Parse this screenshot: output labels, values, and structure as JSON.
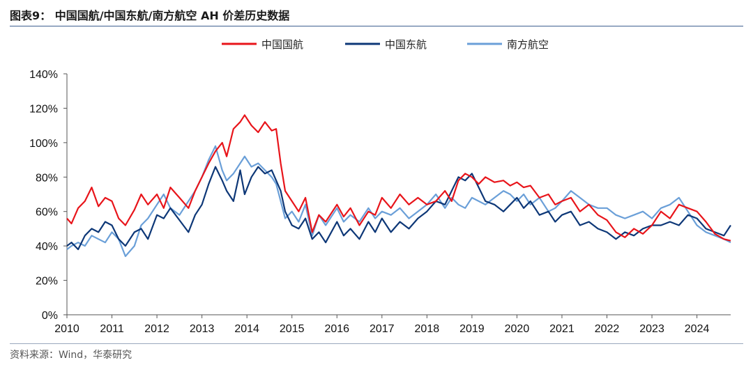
{
  "header": {
    "title": "图表9： 中国国航/中国东航/南方航空 AH 价差历史数据"
  },
  "footer": {
    "source": "资料来源：Wind，华泰研究"
  },
  "chart_data": {
    "type": "line",
    "title": "",
    "xlabel": "",
    "ylabel": "",
    "ylim": [
      0,
      140
    ],
    "xlim": [
      2010.0,
      2024.75
    ],
    "y_unit": "%",
    "yticks": [
      "0%",
      "20%",
      "40%",
      "60%",
      "80%",
      "100%",
      "120%",
      "140%"
    ],
    "yticks_values": [
      0,
      20,
      40,
      60,
      80,
      100,
      120,
      140
    ],
    "xticks": [
      "2010",
      "2011",
      "2012",
      "2013",
      "2014",
      "2015",
      "2016",
      "2017",
      "2018",
      "2019",
      "2020",
      "2021",
      "2022",
      "2023",
      "2024"
    ],
    "grid": false,
    "legend_position": "top",
    "series": [
      {
        "name": "中国国航",
        "color": "#e8141a",
        "x": [
          2010.0,
          2010.1,
          2010.25,
          2010.4,
          2010.55,
          2010.7,
          2010.85,
          2011.0,
          2011.15,
          2011.3,
          2011.5,
          2011.65,
          2011.8,
          2012.0,
          2012.15,
          2012.3,
          2012.5,
          2012.7,
          2012.85,
          2013.0,
          2013.15,
          2013.3,
          2013.45,
          2013.55,
          2013.7,
          2013.85,
          2013.95,
          2014.1,
          2014.25,
          2014.4,
          2014.55,
          2014.65,
          2014.75,
          2014.85,
          2015.0,
          2015.15,
          2015.3,
          2015.45,
          2015.6,
          2015.75,
          2016.0,
          2016.15,
          2016.3,
          2016.5,
          2016.7,
          2016.85,
          2017.0,
          2017.2,
          2017.4,
          2017.6,
          2017.8,
          2018.0,
          2018.2,
          2018.4,
          2018.55,
          2018.7,
          2018.85,
          2019.0,
          2019.15,
          2019.3,
          2019.5,
          2019.7,
          2019.85,
          2020.0,
          2020.15,
          2020.3,
          2020.5,
          2020.7,
          2020.85,
          2021.0,
          2021.2,
          2021.4,
          2021.6,
          2021.8,
          2022.0,
          2022.2,
          2022.4,
          2022.6,
          2022.8,
          2023.0,
          2023.2,
          2023.4,
          2023.6,
          2023.8,
          2024.0,
          2024.2,
          2024.4,
          2024.6,
          2024.75
        ],
        "y": [
          56,
          53,
          62,
          66,
          74,
          63,
          68,
          66,
          56,
          52,
          61,
          70,
          64,
          70,
          62,
          74,
          68,
          62,
          72,
          80,
          88,
          95,
          100,
          92,
          108,
          112,
          116,
          110,
          106,
          112,
          107,
          108,
          88,
          72,
          66,
          60,
          68,
          48,
          58,
          54,
          64,
          57,
          62,
          52,
          60,
          58,
          68,
          62,
          70,
          64,
          68,
          64,
          66,
          72,
          66,
          78,
          82,
          80,
          76,
          80,
          77,
          78,
          75,
          77,
          74,
          75,
          68,
          70,
          64,
          66,
          68,
          60,
          64,
          58,
          55,
          48,
          45,
          50,
          47,
          52,
          60,
          56,
          64,
          62,
          60,
          54,
          47,
          44,
          43
        ]
      },
      {
        "name": "中国东航",
        "color": "#0d3777",
        "x": [
          2010.0,
          2010.1,
          2010.25,
          2010.4,
          2010.55,
          2010.7,
          2010.85,
          2011.0,
          2011.15,
          2011.3,
          2011.5,
          2011.65,
          2011.8,
          2012.0,
          2012.15,
          2012.3,
          2012.5,
          2012.7,
          2012.85,
          2013.0,
          2013.15,
          2013.3,
          2013.45,
          2013.55,
          2013.7,
          2013.85,
          2013.95,
          2014.1,
          2014.25,
          2014.4,
          2014.55,
          2014.65,
          2014.75,
          2014.85,
          2015.0,
          2015.15,
          2015.3,
          2015.45,
          2015.6,
          2015.75,
          2016.0,
          2016.15,
          2016.3,
          2016.5,
          2016.7,
          2016.85,
          2017.0,
          2017.2,
          2017.4,
          2017.6,
          2017.8,
          2018.0,
          2018.2,
          2018.4,
          2018.55,
          2018.7,
          2018.85,
          2019.0,
          2019.15,
          2019.3,
          2019.5,
          2019.7,
          2019.85,
          2020.0,
          2020.15,
          2020.3,
          2020.5,
          2020.7,
          2020.85,
          2021.0,
          2021.2,
          2021.4,
          2021.6,
          2021.8,
          2022.0,
          2022.2,
          2022.4,
          2022.6,
          2022.8,
          2023.0,
          2023.2,
          2023.4,
          2023.6,
          2023.8,
          2024.0,
          2024.2,
          2024.4,
          2024.6,
          2024.75
        ],
        "y": [
          40,
          42,
          38,
          46,
          50,
          48,
          54,
          52,
          44,
          40,
          48,
          50,
          44,
          58,
          56,
          62,
          55,
          48,
          58,
          64,
          76,
          86,
          78,
          72,
          66,
          84,
          70,
          80,
          86,
          82,
          84,
          78,
          72,
          60,
          52,
          50,
          56,
          44,
          48,
          42,
          54,
          46,
          50,
          44,
          54,
          48,
          56,
          48,
          54,
          50,
          56,
          60,
          66,
          64,
          72,
          80,
          78,
          82,
          74,
          66,
          64,
          60,
          64,
          68,
          62,
          66,
          58,
          60,
          54,
          58,
          60,
          52,
          54,
          50,
          48,
          44,
          48,
          46,
          50,
          52,
          52,
          54,
          52,
          58,
          56,
          50,
          48,
          46,
          52
        ]
      },
      {
        "name": "南方航空",
        "color": "#6a9fd8",
        "x": [
          2010.0,
          2010.1,
          2010.25,
          2010.4,
          2010.55,
          2010.7,
          2010.85,
          2011.0,
          2011.15,
          2011.3,
          2011.5,
          2011.65,
          2011.8,
          2012.0,
          2012.15,
          2012.3,
          2012.5,
          2012.7,
          2012.85,
          2013.0,
          2013.15,
          2013.3,
          2013.45,
          2013.55,
          2013.7,
          2013.85,
          2013.95,
          2014.1,
          2014.25,
          2014.4,
          2014.55,
          2014.65,
          2014.75,
          2014.85,
          2015.0,
          2015.15,
          2015.3,
          2015.45,
          2015.6,
          2015.75,
          2016.0,
          2016.15,
          2016.3,
          2016.5,
          2016.7,
          2016.85,
          2017.0,
          2017.2,
          2017.4,
          2017.6,
          2017.8,
          2018.0,
          2018.2,
          2018.4,
          2018.55,
          2018.7,
          2018.85,
          2019.0,
          2019.15,
          2019.3,
          2019.5,
          2019.7,
          2019.85,
          2020.0,
          2020.15,
          2020.3,
          2020.5,
          2020.7,
          2020.85,
          2021.0,
          2021.2,
          2021.4,
          2021.6,
          2021.8,
          2022.0,
          2022.2,
          2022.4,
          2022.6,
          2022.8,
          2023.0,
          2023.2,
          2023.4,
          2023.6,
          2023.8,
          2024.0,
          2024.2,
          2024.4,
          2024.6,
          2024.75
        ],
        "y": [
          38,
          40,
          42,
          40,
          46,
          44,
          42,
          48,
          44,
          34,
          40,
          52,
          56,
          64,
          70,
          62,
          58,
          66,
          72,
          80,
          90,
          98,
          84,
          78,
          82,
          88,
          92,
          86,
          88,
          84,
          80,
          76,
          66,
          56,
          60,
          54,
          64,
          46,
          58,
          52,
          62,
          54,
          58,
          54,
          62,
          56,
          60,
          58,
          62,
          56,
          60,
          64,
          70,
          62,
          68,
          64,
          62,
          68,
          66,
          64,
          68,
          72,
          70,
          66,
          70,
          64,
          68,
          60,
          62,
          66,
          72,
          68,
          64,
          62,
          62,
          58,
          56,
          58,
          60,
          56,
          62,
          64,
          68,
          60,
          52,
          48,
          46,
          44,
          42
        ]
      }
    ]
  }
}
